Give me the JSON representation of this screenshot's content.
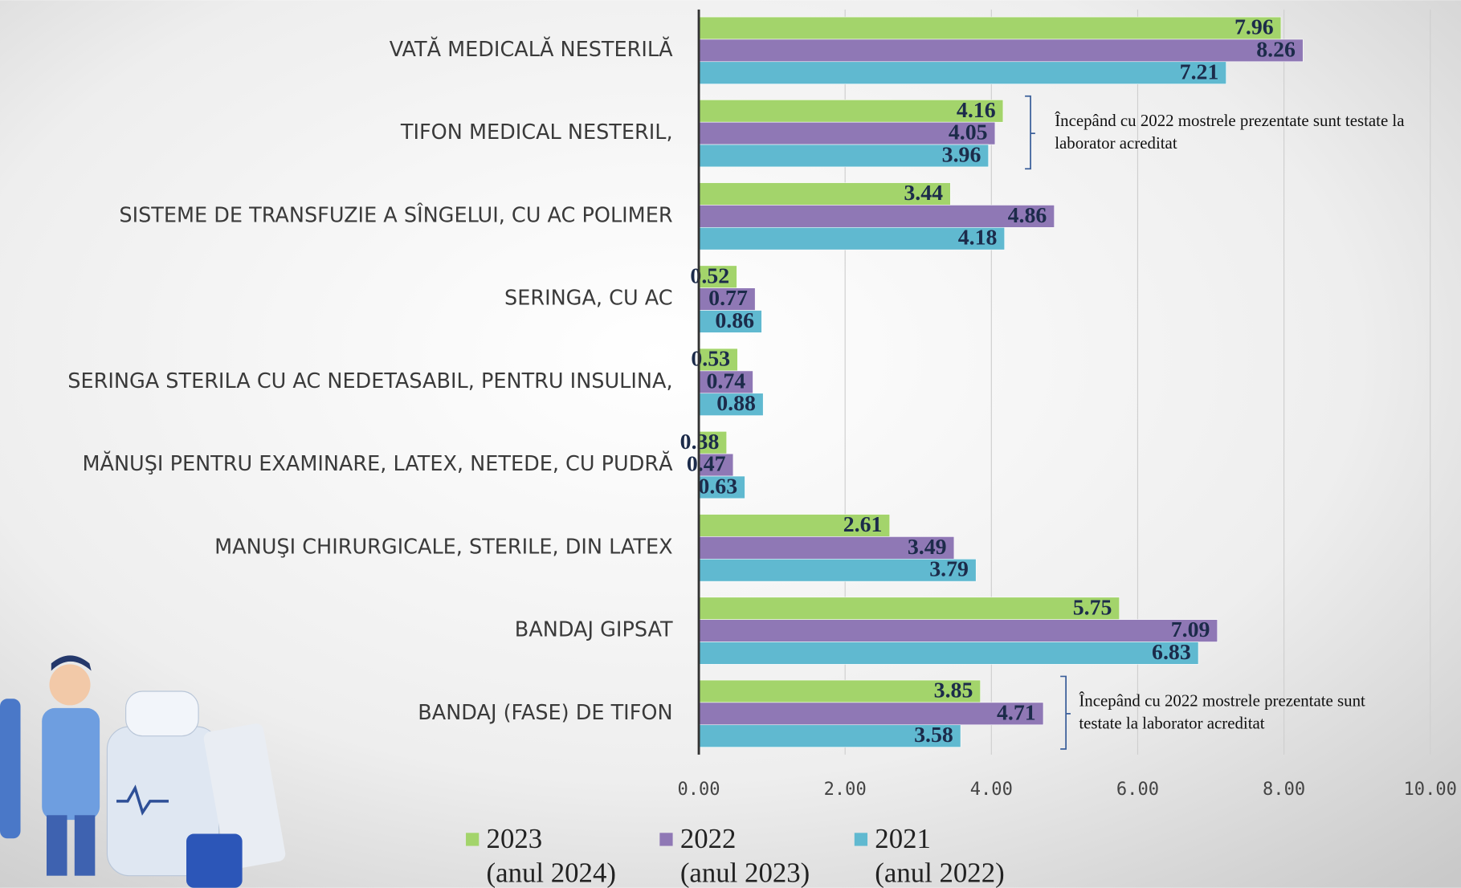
{
  "chart_data": {
    "type": "bar",
    "orientation": "horizontal",
    "categories": [
      "VATĂ MEDICALĂ NESTERILĂ",
      "TIFON MEDICAL NESTERIL,",
      "SISTEME DE TRANSFUZIE A SÎNGELUI, CU AC POLIMER",
      "SERINGA, CU AC",
      "SERINGA STERILA CU AC NEDETASABIL, PENTRU INSULINA,",
      "MĂNUŞI PENTRU EXAMINARE, LATEX, NETEDE, CU PUDRĂ",
      "MANUŞI CHIRURGICALE, STERILE, DIN LATEX",
      "BANDAJ GIPSAT",
      "BANDAJ (FASE) DE TIFON"
    ],
    "series": [
      {
        "name": "2023",
        "period": "(anul 2024)",
        "color": "#a3d46b",
        "values": [
          7.96,
          4.16,
          3.44,
          0.52,
          0.53,
          0.38,
          2.61,
          5.75,
          3.85
        ]
      },
      {
        "name": "2022",
        "period": "(anul 2023)",
        "color": "#8f78b5",
        "values": [
          8.26,
          4.05,
          4.86,
          0.77,
          0.74,
          0.47,
          3.49,
          7.09,
          4.71
        ]
      },
      {
        "name": "2021",
        "period": "(anul 2022)",
        "color": "#60b9d0",
        "values": [
          7.21,
          3.96,
          4.18,
          0.86,
          0.88,
          0.63,
          3.79,
          6.83,
          3.58
        ]
      }
    ],
    "xlim": [
      0,
      10
    ],
    "xticks": [
      {
        "value": 0,
        "label": "0.00"
      },
      {
        "value": 2,
        "label": "2.00"
      },
      {
        "value": 4,
        "label": "4.00"
      },
      {
        "value": 6,
        "label": "6.00"
      },
      {
        "value": 8,
        "label": "8.00"
      },
      {
        "value": 10,
        "label": "10.00"
      }
    ],
    "grid": true,
    "legend": "bottom",
    "annotations": [
      {
        "category": 1,
        "lines": [
          "Începând cu 2022 mostrele prezentate sunt testate la",
          "laborator acreditat"
        ]
      },
      {
        "category": 8,
        "lines": [
          "Începând cu 2022 mostrele prezentate sunt",
          "testate la  laborator acreditat"
        ]
      }
    ]
  }
}
